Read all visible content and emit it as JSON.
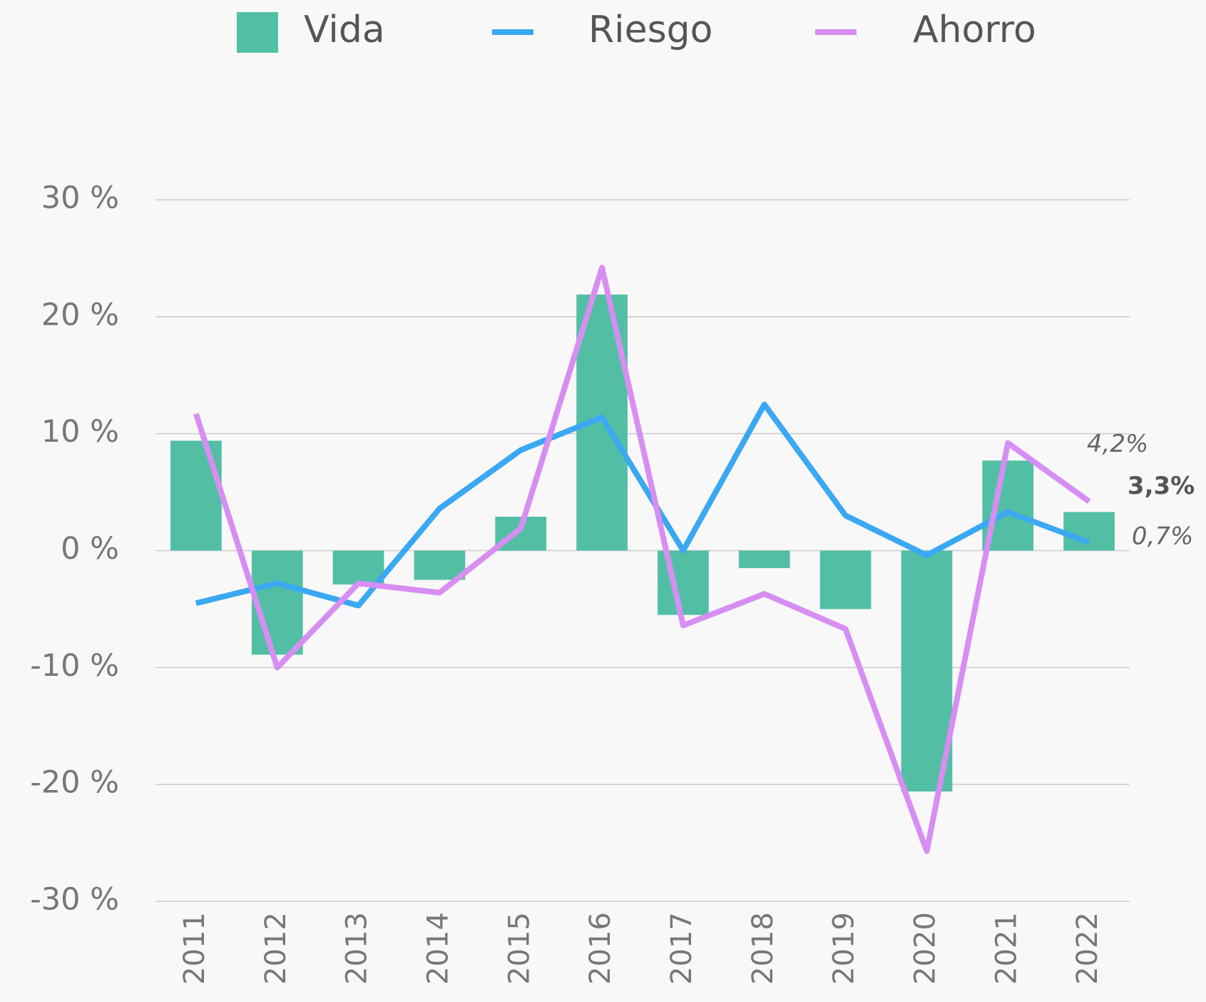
{
  "chart_data": {
    "type": "bar_line",
    "categories": [
      "2011",
      "2012",
      "2013",
      "2014",
      "2015",
      "2016",
      "2017",
      "2018",
      "2019",
      "2020",
      "2021",
      "2022"
    ],
    "series": [
      {
        "name": "Vida",
        "type": "bar",
        "color": "#52bfa5",
        "values": [
          9.4,
          -8.9,
          -2.9,
          -2.5,
          2.9,
          21.9,
          -5.5,
          -1.5,
          -5.0,
          -20.6,
          7.7,
          3.3
        ],
        "value_labels": [
          null,
          null,
          null,
          null,
          null,
          null,
          null,
          null,
          null,
          null,
          null,
          "3,3%"
        ]
      },
      {
        "name": "Riesgo",
        "type": "line",
        "color": "#3aa8f2",
        "values": [
          -4.5,
          -2.8,
          -4.7,
          3.6,
          8.6,
          11.4,
          0.0,
          12.5,
          3.0,
          -0.4,
          3.3,
          0.7
        ],
        "value_labels": [
          null,
          null,
          null,
          null,
          null,
          null,
          null,
          null,
          null,
          null,
          null,
          "0,7%"
        ]
      },
      {
        "name": "Ahorro",
        "type": "line",
        "color": "#d78ef2",
        "values": [
          11.7,
          -10.0,
          -2.8,
          -3.6,
          1.9,
          24.2,
          -6.4,
          -3.7,
          -6.7,
          -25.7,
          9.2,
          4.2
        ],
        "value_labels": [
          null,
          null,
          null,
          null,
          null,
          null,
          null,
          null,
          null,
          null,
          null,
          "4,2%"
        ]
      }
    ],
    "ylim": [
      -30,
      30
    ],
    "yticks": [
      {
        "value": -30,
        "label": "-30 %"
      },
      {
        "value": -20,
        "label": "-20 %"
      },
      {
        "value": -10,
        "label": "-10 %"
      },
      {
        "value": 0,
        "label": "0 %"
      },
      {
        "value": 10,
        "label": "10 %"
      },
      {
        "value": 20,
        "label": "20 %"
      },
      {
        "value": 30,
        "label": "30 %"
      }
    ],
    "grid": true,
    "legend": "top"
  }
}
